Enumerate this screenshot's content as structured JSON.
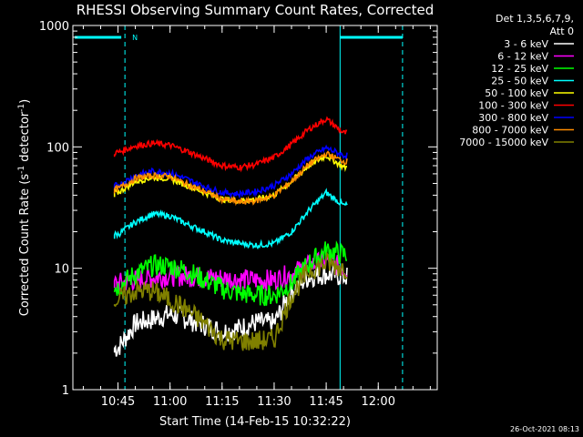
{
  "chart_data": {
    "type": "line",
    "title": "RHESSI Observing Summary Count Rates, Corrected",
    "xlabel": "Start Time (14-Feb-15 10:32:22)",
    "ylabel_main": "Corrected Count Rate (s",
    "ylabel_sup1": "-1",
    "ylabel_mid": " detector",
    "ylabel_sup2": "-1",
    "ylabel_end": ")",
    "yscale": "log",
    "ylim": [
      1,
      1000
    ],
    "xlim_minutes": [
      "10:32",
      "12:17"
    ],
    "x_ticks": [
      "10:45",
      "11:00",
      "11:15",
      "11:30",
      "11:45",
      "12:00"
    ],
    "y_ticks": [
      "1",
      "10",
      "100",
      "1000"
    ],
    "legend_header": [
      "Det 1,3,5,6,7,9,",
      "Att 0"
    ],
    "legend_placement": "right",
    "timestamp": "26-Oct-2021 08:13",
    "night_flag": "N",
    "series": [
      {
        "name": "3 - 6 keV",
        "color": "#ffffff",
        "x": [
          "10:45",
          "10:50",
          "10:55",
          "11:00",
          "11:05",
          "11:10",
          "11:15",
          "11:20",
          "11:25",
          "11:30",
          "11:35",
          "11:40",
          "11:45",
          "11:50"
        ],
        "y": [
          2.2,
          3.5,
          3.8,
          4.2,
          3.8,
          3.4,
          3.0,
          3.2,
          3.6,
          3.5,
          6.5,
          8.5,
          9.0,
          8.5
        ]
      },
      {
        "name": "6 - 12 keV",
        "color": "#ff00ff",
        "x": [
          "10:45",
          "10:50",
          "10:55",
          "11:00",
          "11:05",
          "11:10",
          "11:15",
          "11:20",
          "11:25",
          "11:30",
          "11:35",
          "11:40",
          "11:45",
          "11:50"
        ],
        "y": [
          7.5,
          8.0,
          8.4,
          8.7,
          8.6,
          8.4,
          8.3,
          8.1,
          8.0,
          8.0,
          9.0,
          10.5,
          11.5,
          10.0
        ]
      },
      {
        "name": "12 - 25 keV",
        "color": "#00ff00",
        "x": [
          "10:45",
          "10:50",
          "10:55",
          "11:00",
          "11:05",
          "11:10",
          "11:15",
          "11:20",
          "11:25",
          "11:30",
          "11:35",
          "11:40",
          "11:45",
          "11:50"
        ],
        "y": [
          7.0,
          9.0,
          10.5,
          10.5,
          9.5,
          8.0,
          6.8,
          6.2,
          6.0,
          6.0,
          7.5,
          11.0,
          14.0,
          13.0
        ]
      },
      {
        "name": "25 - 50 keV",
        "color": "#00ffff",
        "x": [
          "10:45",
          "10:50",
          "10:55",
          "11:00",
          "11:05",
          "11:10",
          "11:15",
          "11:20",
          "11:25",
          "11:30",
          "11:35",
          "11:40",
          "11:45",
          "11:50"
        ],
        "y": [
          19,
          24,
          28,
          27,
          23,
          20,
          17,
          16,
          15.5,
          16,
          20,
          30,
          42,
          33
        ]
      },
      {
        "name": "50 - 100 keV",
        "color": "#ffff00",
        "x": [
          "10:45",
          "10:50",
          "10:55",
          "11:00",
          "11:05",
          "11:10",
          "11:15",
          "11:20",
          "11:25",
          "11:30",
          "11:35",
          "11:40",
          "11:45",
          "11:50"
        ],
        "y": [
          42,
          52,
          56,
          55,
          48,
          42,
          37,
          36,
          37,
          40,
          52,
          70,
          85,
          68
        ]
      },
      {
        "name": "100 - 300 keV",
        "color": "#ff0000",
        "x": [
          "10:45",
          "10:50",
          "10:55",
          "11:00",
          "11:05",
          "11:10",
          "11:15",
          "11:20",
          "11:25",
          "11:30",
          "11:35",
          "11:40",
          "11:45",
          "11:50"
        ],
        "y": [
          90,
          102,
          107,
          103,
          92,
          80,
          70,
          68,
          72,
          82,
          105,
          140,
          170,
          130
        ]
      },
      {
        "name": "300 - 800 keV",
        "color": "#0000ff",
        "x": [
          "10:45",
          "10:50",
          "10:55",
          "11:00",
          "11:05",
          "11:10",
          "11:15",
          "11:20",
          "11:25",
          "11:30",
          "11:35",
          "11:40",
          "11:45",
          "11:50"
        ],
        "y": [
          48,
          58,
          63,
          61,
          54,
          47,
          42,
          41,
          43,
          48,
          60,
          82,
          98,
          85
        ]
      },
      {
        "name": "800 - 7000 keV",
        "color": "#ff8c00",
        "x": [
          "10:45",
          "10:50",
          "10:55",
          "11:00",
          "11:05",
          "11:10",
          "11:15",
          "11:20",
          "11:25",
          "11:30",
          "11:35",
          "11:40",
          "11:45",
          "11:50"
        ],
        "y": [
          45,
          55,
          58,
          57,
          49,
          43,
          37,
          35,
          36,
          40,
          52,
          72,
          88,
          76
        ]
      },
      {
        "name": "7000 - 15000 keV",
        "color": "#808000",
        "x": [
          "10:45",
          "10:50",
          "10:55",
          "11:00",
          "11:05",
          "11:10",
          "11:15",
          "11:20",
          "11:25",
          "11:30",
          "11:35",
          "11:40",
          "11:45",
          "11:50"
        ],
        "y": [
          5.5,
          6.5,
          6.5,
          5.5,
          4.5,
          3.5,
          2.6,
          2.5,
          2.5,
          2.6,
          6.0,
          9.5,
          11.0,
          10.0
        ]
      }
    ]
  }
}
